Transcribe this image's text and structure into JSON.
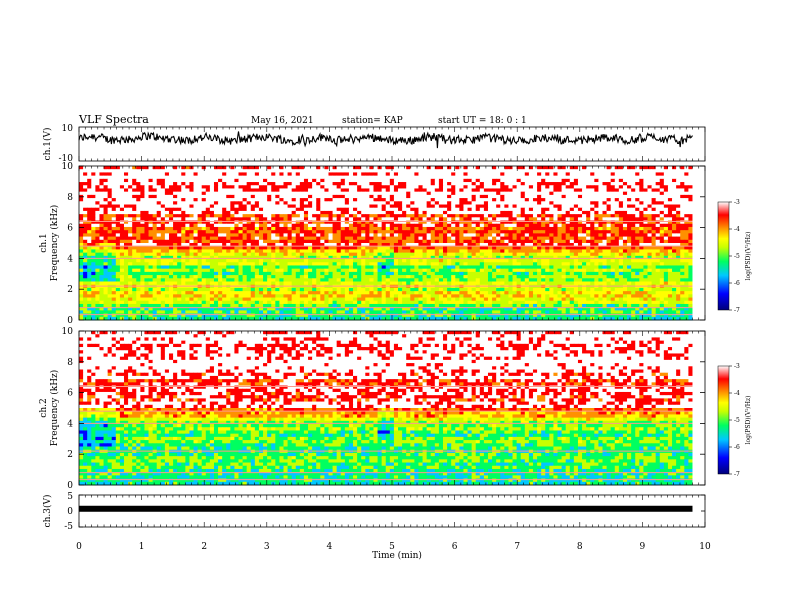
{
  "header": {
    "title": "VLF Spectra",
    "date": "May 16, 2021",
    "station": "station= KAP",
    "start_ut": "start  UT =   18: 0  : 1"
  },
  "chart_data": [
    {
      "type": "line",
      "name": "ch1-waveform",
      "ylabel": "ch.1(V)",
      "ylim": [
        -10,
        10
      ],
      "yticks": [
        "10",
        "-10"
      ],
      "xlim": [
        0,
        10
      ],
      "x_end": 9.8,
      "approx_mean": 3,
      "approx_amplitude": 3
    },
    {
      "type": "heatmap",
      "name": "ch1-spectrogram",
      "ylabel": "ch.1 Frequency (kHz)",
      "ylim": [
        0,
        10
      ],
      "yticks": [
        "0",
        "2",
        "4",
        "6",
        "8",
        "10"
      ],
      "xlim": [
        0,
        10
      ],
      "x_end": 9.8,
      "colorbar": {
        "label": "log(PSD)(V²/Hz)",
        "range": [
          -7,
          -3
        ],
        "ticks": [
          "-3",
          "-4",
          "-5",
          "-6",
          "-7"
        ]
      },
      "approx_profile_khz": [
        {
          "f": 0.5,
          "v": -5.6
        },
        {
          "f": 1.5,
          "v": -4.6
        },
        {
          "f": 2.5,
          "v": -5.0
        },
        {
          "f": 3.2,
          "v": -5.2
        },
        {
          "f": 4.2,
          "v": -4.7
        },
        {
          "f": 5.0,
          "v": -3.6
        },
        {
          "f": 6.0,
          "v": -3.8
        },
        {
          "f": 7.5,
          "v": -3.3
        },
        {
          "f": 9.5,
          "v": -3.2
        }
      ]
    },
    {
      "type": "heatmap",
      "name": "ch2-spectrogram",
      "ylabel": "ch.2 Frequency (kHz)",
      "ylim": [
        0,
        10
      ],
      "yticks": [
        "0",
        "2",
        "4",
        "6",
        "8",
        "10"
      ],
      "xlim": [
        0,
        10
      ],
      "x_end": 9.8,
      "colorbar": {
        "label": "log(PSD)(V²/Hz)",
        "range": [
          -7,
          -3
        ],
        "ticks": [
          "-3",
          "-4",
          "-5",
          "-6",
          "-7"
        ]
      },
      "approx_profile_khz": [
        {
          "f": 0.5,
          "v": -5.4
        },
        {
          "f": 1.5,
          "v": -5.2
        },
        {
          "f": 2.5,
          "v": -5.4
        },
        {
          "f": 3.2,
          "v": -5.3
        },
        {
          "f": 4.2,
          "v": -4.9
        },
        {
          "f": 5.0,
          "v": -3.5
        },
        {
          "f": 6.0,
          "v": -3.7
        },
        {
          "f": 7.5,
          "v": -3.3
        },
        {
          "f": 9.5,
          "v": -3.2
        }
      ]
    },
    {
      "type": "line",
      "name": "ch3-waveform",
      "ylabel": "ch.3(V)",
      "ylim": [
        -5,
        5
      ],
      "yticks": [
        "5",
        "0",
        "-5"
      ],
      "xlim": [
        0,
        10
      ],
      "x_end": 9.8,
      "approx_mean": 0,
      "approx_amplitude": 0.4
    }
  ],
  "xaxis": {
    "label": "Time (min)",
    "ticks": [
      "0",
      "1",
      "2",
      "3",
      "4",
      "5",
      "6",
      "7",
      "8",
      "9",
      "10"
    ]
  },
  "colors": {
    "palette": [
      "#00007a",
      "#0000ff",
      "#00c8ff",
      "#00ff60",
      "#c8ff00",
      "#ffff00",
      "#ff9000",
      "#ff0000",
      "#ffffff"
    ]
  }
}
